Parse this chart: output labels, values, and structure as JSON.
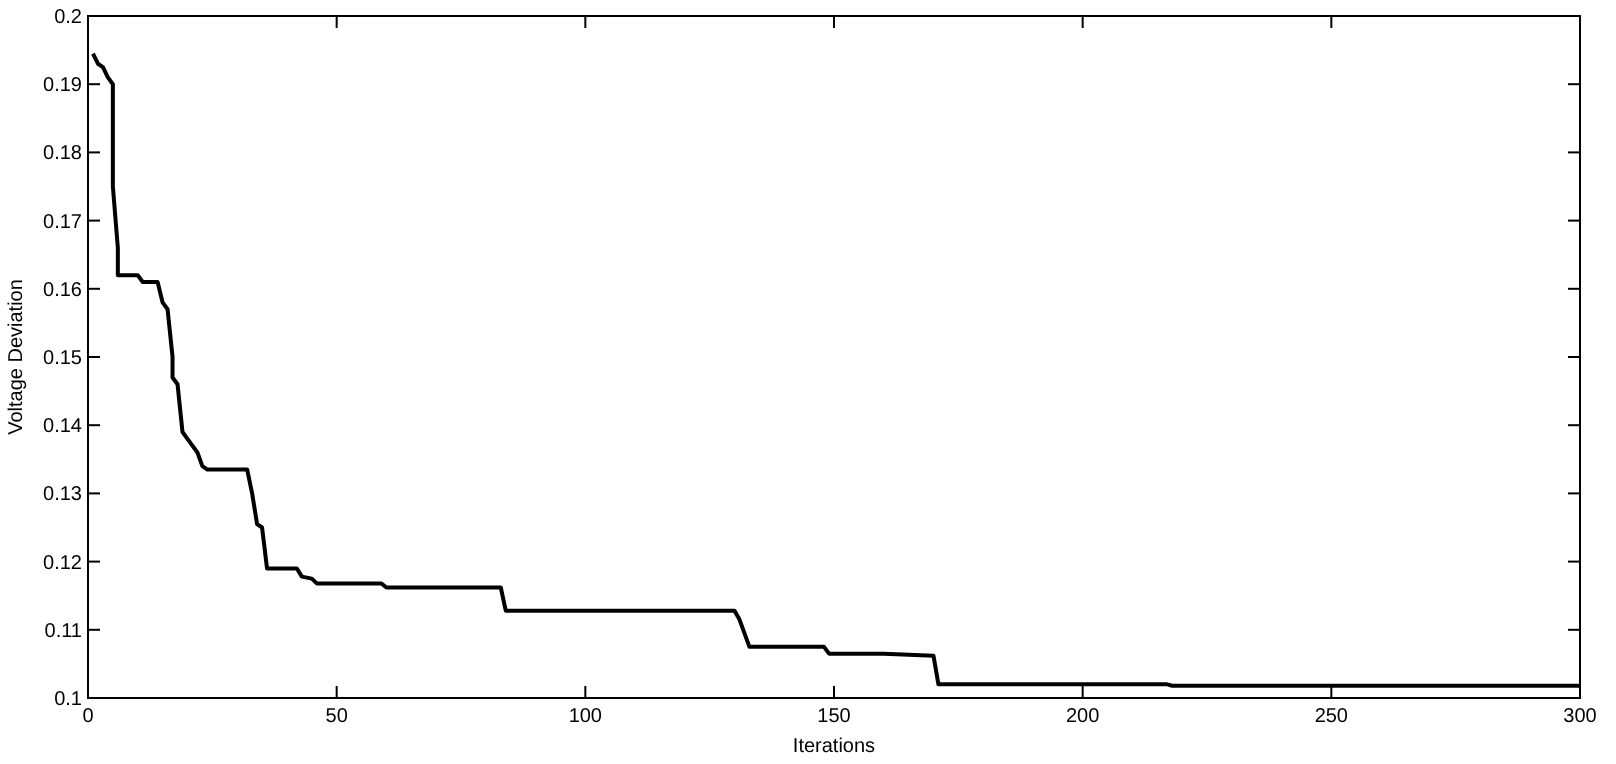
{
  "chart_data": {
    "type": "line",
    "xlabel": "Iterations",
    "ylabel": "Voltage Deviation",
    "x": [
      1,
      2,
      3,
      4,
      5,
      5,
      6,
      6,
      10,
      11,
      14,
      15,
      16,
      17,
      17,
      18,
      19,
      20,
      21,
      22,
      23,
      24,
      32,
      33,
      34,
      35,
      36,
      42,
      43,
      45,
      46,
      59,
      60,
      83,
      84,
      130,
      131,
      133,
      148,
      149,
      160,
      170,
      171,
      217,
      218,
      300
    ],
    "series": [
      {
        "color": "#000000",
        "values": [
          0.1945,
          0.193,
          0.1925,
          0.191,
          0.19,
          0.175,
          0.166,
          0.162,
          0.162,
          0.161,
          0.161,
          0.158,
          0.157,
          0.15,
          0.147,
          0.146,
          0.139,
          0.138,
          0.137,
          0.136,
          0.134,
          0.1335,
          0.1335,
          0.13,
          0.1255,
          0.125,
          0.119,
          0.119,
          0.1178,
          0.1175,
          0.1168,
          0.1168,
          0.1162,
          0.1162,
          0.1128,
          0.1128,
          0.1115,
          0.1075,
          0.1075,
          0.1065,
          0.1065,
          0.1062,
          0.102,
          0.102,
          0.1018,
          0.1018
        ]
      }
    ],
    "xlim": [
      0,
      300
    ],
    "xticks": [
      0,
      50,
      100,
      150,
      200,
      250,
      300
    ],
    "ylim": [
      0.1,
      0.2
    ],
    "yticks": [
      0.1,
      0.11,
      0.12,
      0.13,
      0.14,
      0.15,
      0.16,
      0.17,
      0.18,
      0.19,
      0.2
    ],
    "grid": false,
    "marker": "none",
    "line_style": "solid"
  }
}
